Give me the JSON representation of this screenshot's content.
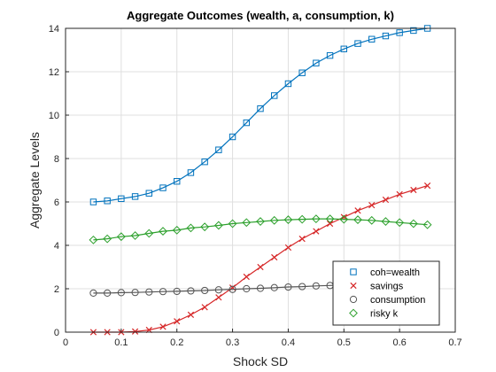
{
  "chart_data": {
    "type": "line",
    "title": "Aggregate Outcomes (wealth, a, consumption, k)",
    "xlabel": "Shock SD",
    "ylabel": "Aggregate Levels",
    "xlim": [
      0,
      0.7
    ],
    "ylim": [
      0,
      14
    ],
    "xticks": [
      0,
      0.1,
      0.2,
      0.3,
      0.4,
      0.5,
      0.6,
      0.7
    ],
    "yticks": [
      0,
      2,
      4,
      6,
      8,
      10,
      12,
      14
    ],
    "grid": true,
    "legend_position": "bottom-right",
    "x": [
      0.05,
      0.075,
      0.1,
      0.125,
      0.15,
      0.175,
      0.2,
      0.225,
      0.25,
      0.275,
      0.3,
      0.325,
      0.35,
      0.375,
      0.4,
      0.425,
      0.45,
      0.475,
      0.5,
      0.525,
      0.55,
      0.575,
      0.6,
      0.625,
      0.65
    ],
    "series": [
      {
        "name": "coh=wealth",
        "color": "#0072BD",
        "marker": "square",
        "values": [
          6.0,
          6.05,
          6.15,
          6.25,
          6.4,
          6.65,
          6.95,
          7.35,
          7.85,
          8.4,
          9.0,
          9.65,
          10.3,
          10.9,
          11.45,
          11.95,
          12.4,
          12.75,
          13.05,
          13.3,
          13.5,
          13.65,
          13.8,
          13.9,
          14.0
        ]
      },
      {
        "name": "savings",
        "color": "#D62728",
        "marker": "x",
        "values": [
          0.0,
          0.0,
          0.0,
          0.03,
          0.1,
          0.25,
          0.5,
          0.8,
          1.15,
          1.6,
          2.05,
          2.55,
          3.0,
          3.45,
          3.9,
          4.3,
          4.65,
          5.0,
          5.3,
          5.6,
          5.85,
          6.1,
          6.35,
          6.55,
          6.75
        ]
      },
      {
        "name": "consumption",
        "color": "#555555",
        "marker": "circle",
        "values": [
          1.8,
          1.8,
          1.82,
          1.83,
          1.85,
          1.87,
          1.88,
          1.9,
          1.92,
          1.95,
          1.97,
          2.0,
          2.02,
          2.05,
          2.08,
          2.1,
          2.13,
          2.15,
          2.18,
          2.2,
          2.23,
          2.25,
          2.28,
          2.3,
          2.32
        ]
      },
      {
        "name": "risky k",
        "color": "#2CA02C",
        "marker": "diamond",
        "values": [
          4.25,
          4.3,
          4.4,
          4.45,
          4.55,
          4.65,
          4.7,
          4.8,
          4.85,
          4.92,
          5.0,
          5.05,
          5.1,
          5.15,
          5.18,
          5.2,
          5.22,
          5.22,
          5.2,
          5.18,
          5.15,
          5.1,
          5.05,
          5.0,
          4.95
        ]
      }
    ]
  }
}
